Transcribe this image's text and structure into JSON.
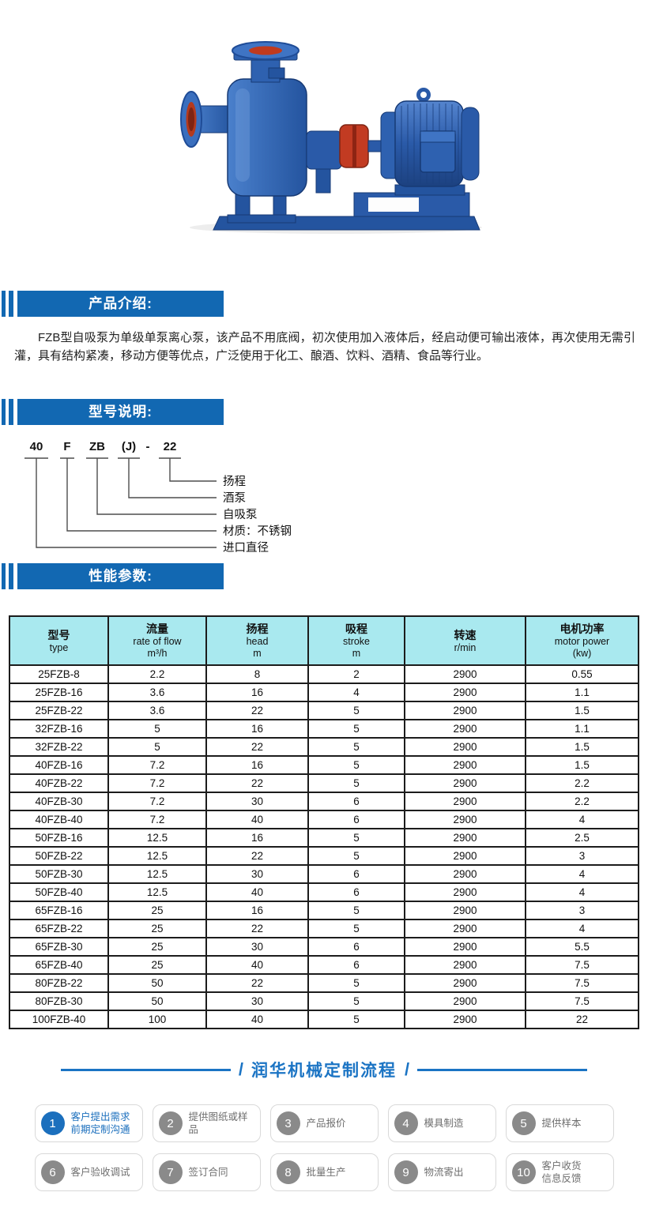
{
  "colors": {
    "section_bar_blue": "#1268b2",
    "table_header_bg": "#a9e9ef",
    "table_border": "#1c1c1c",
    "process_blue": "#1b74c4",
    "step_highlight_blue": "#1b6fbd",
    "step_gray": "#8a8a8a",
    "pump_blue": "#2e61b0",
    "pump_red": "#c23b22"
  },
  "sections": {
    "intro": {
      "title": "产品介绍:",
      "paragraph": "FZB型自吸泵为单级单泵离心泵，该产品不用底阀，初次使用加入液体后，经启动便可输出液体，再次使用无需引灌，具有结构紧凑，移动方便等优点，广泛使用于化工、酿酒、饮料、酒精、食品等行业。"
    },
    "model": {
      "title": "型号说明:",
      "segments": [
        "40",
        "F",
        "ZB",
        "(J)",
        "-",
        "22"
      ],
      "labels": [
        "扬程",
        "酒泵",
        "自吸泵",
        "材质：不锈钢",
        "进口直径"
      ]
    },
    "params": {
      "title": "性能参数:"
    }
  },
  "table": {
    "headers": [
      {
        "lines": [
          "型号",
          "type"
        ]
      },
      {
        "lines": [
          "流量",
          "rate of flow",
          "m³/h"
        ]
      },
      {
        "lines": [
          "扬程",
          "head",
          "m"
        ]
      },
      {
        "lines": [
          "吸程",
          "stroke",
          "m"
        ]
      },
      {
        "lines": [
          "转速",
          "r/min"
        ]
      },
      {
        "lines": [
          "电机功率",
          "motor power",
          "(kw)"
        ]
      }
    ],
    "rows": [
      [
        "25FZB-8",
        "2.2",
        "8",
        "2",
        "2900",
        "0.55"
      ],
      [
        "25FZB-16",
        "3.6",
        "16",
        "4",
        "2900",
        "1.1"
      ],
      [
        "25FZB-22",
        "3.6",
        "22",
        "5",
        "2900",
        "1.5"
      ],
      [
        "32FZB-16",
        "5",
        "16",
        "5",
        "2900",
        "1.1"
      ],
      [
        "32FZB-22",
        "5",
        "22",
        "5",
        "2900",
        "1.5"
      ],
      [
        "40FZB-16",
        "7.2",
        "16",
        "5",
        "2900",
        "1.5"
      ],
      [
        "40FZB-22",
        "7.2",
        "22",
        "5",
        "2900",
        "2.2"
      ],
      [
        "40FZB-30",
        "7.2",
        "30",
        "6",
        "2900",
        "2.2"
      ],
      [
        "40FZB-40",
        "7.2",
        "40",
        "6",
        "2900",
        "4"
      ],
      [
        "50FZB-16",
        "12.5",
        "16",
        "5",
        "2900",
        "2.5"
      ],
      [
        "50FZB-22",
        "12.5",
        "22",
        "5",
        "2900",
        "3"
      ],
      [
        "50FZB-30",
        "12.5",
        "30",
        "6",
        "2900",
        "4"
      ],
      [
        "50FZB-40",
        "12.5",
        "40",
        "6",
        "2900",
        "4"
      ],
      [
        "65FZB-16",
        "25",
        "16",
        "5",
        "2900",
        "3"
      ],
      [
        "65FZB-22",
        "25",
        "22",
        "5",
        "2900",
        "4"
      ],
      [
        "65FZB-30",
        "25",
        "30",
        "6",
        "2900",
        "5.5"
      ],
      [
        "65FZB-40",
        "25",
        "40",
        "6",
        "2900",
        "7.5"
      ],
      [
        "80FZB-22",
        "50",
        "22",
        "5",
        "2900",
        "7.5"
      ],
      [
        "80FZB-30",
        "50",
        "30",
        "5",
        "2900",
        "7.5"
      ],
      [
        "100FZB-40",
        "100",
        "40",
        "5",
        "2900",
        "22"
      ]
    ]
  },
  "process": {
    "title": "润华机械定制流程",
    "slash": "/",
    "steps": [
      {
        "num": "1",
        "label": "客户提出需求\n前期定制沟通",
        "highlight": true
      },
      {
        "num": "2",
        "label": "提供图纸或样品",
        "highlight": false
      },
      {
        "num": "3",
        "label": "产品报价",
        "highlight": false
      },
      {
        "num": "4",
        "label": "模具制造",
        "highlight": false
      },
      {
        "num": "5",
        "label": "提供样本",
        "highlight": false
      },
      {
        "num": "6",
        "label": "客户验收调试",
        "highlight": false
      },
      {
        "num": "7",
        "label": "签订合同",
        "highlight": false
      },
      {
        "num": "8",
        "label": "批量生产",
        "highlight": false
      },
      {
        "num": "9",
        "label": "物流寄出",
        "highlight": false
      },
      {
        "num": "10",
        "label": "客户收货\n信息反馈",
        "highlight": false
      }
    ]
  }
}
